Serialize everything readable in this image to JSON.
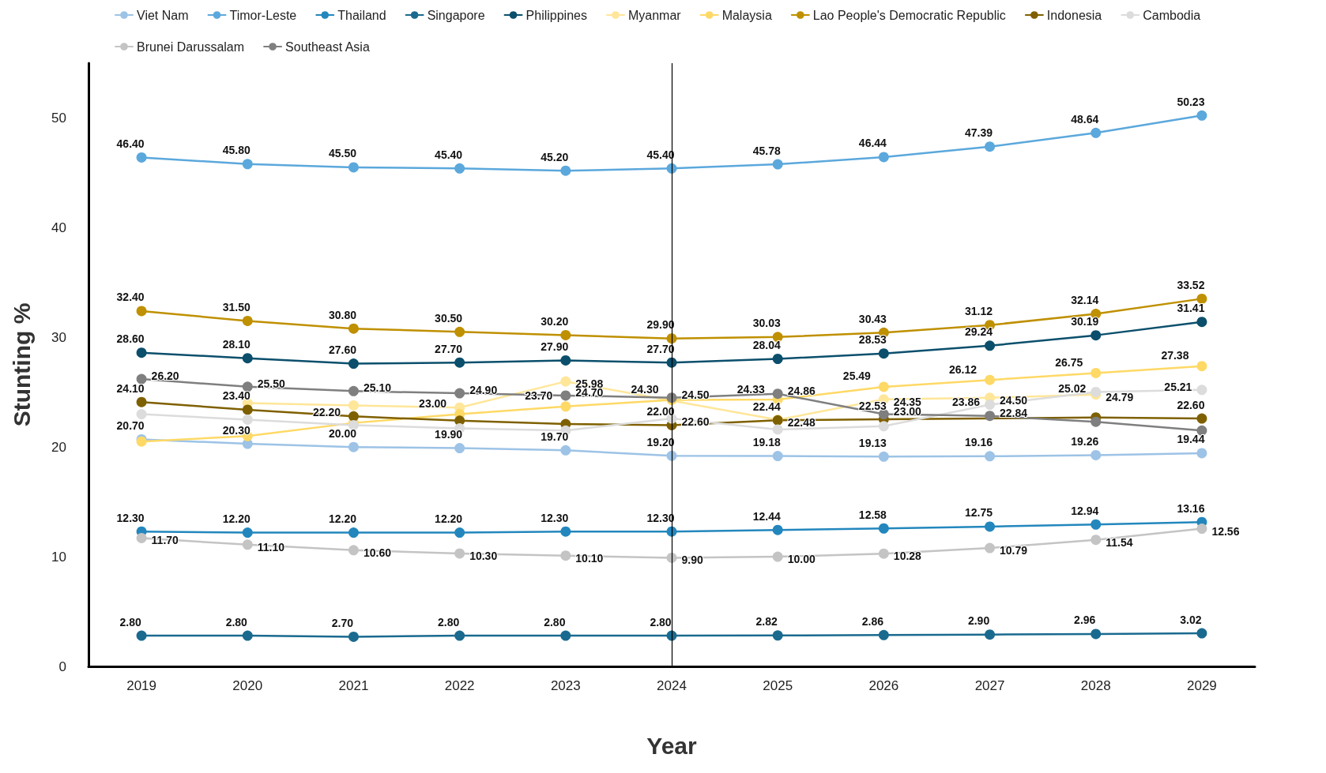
{
  "chart_data": {
    "type": "line",
    "xlabel": "Year",
    "ylabel": "Stunting %",
    "categories": [
      "2019",
      "2020",
      "2021",
      "2022",
      "2023",
      "2024",
      "2025",
      "2026",
      "2027",
      "2028",
      "2029"
    ],
    "ylim": [
      0,
      55
    ],
    "yticks": [
      0,
      10,
      20,
      30,
      40,
      50
    ],
    "grid": false,
    "legend": "top",
    "marker": "circle",
    "line_style": "solid",
    "ref_lines": [
      {
        "axis": "x",
        "value": "2024",
        "color": "#000000"
      }
    ],
    "series": [
      {
        "name": "Viet Nam",
        "color": "#9dc3e6",
        "values": [
          20.7,
          20.3,
          20.0,
          19.9,
          19.7,
          19.2,
          19.18,
          19.13,
          19.16,
          19.26,
          19.44
        ],
        "value_labels": [
          "20.70",
          "20.30",
          "20.00",
          "19.90",
          "19.70",
          "19.20",
          "19.18",
          "19.13",
          "19.16",
          "19.26",
          "19.44"
        ]
      },
      {
        "name": "Timor-Leste",
        "color": "#5ba8dc",
        "values": [
          46.4,
          45.8,
          45.5,
          45.4,
          45.2,
          45.4,
          45.78,
          46.44,
          47.39,
          48.64,
          50.23
        ],
        "value_labels": [
          "46.40",
          "45.80",
          "45.50",
          "45.40",
          "45.20",
          "45.40",
          "45.78",
          "46.44",
          "47.39",
          "48.64",
          "50.23"
        ]
      },
      {
        "name": "Thailand",
        "color": "#2387bd",
        "values": [
          12.3,
          12.2,
          12.2,
          12.2,
          12.3,
          12.3,
          12.44,
          12.58,
          12.75,
          12.94,
          13.16
        ],
        "value_labels": [
          "12.30",
          "12.20",
          "12.20",
          "12.20",
          "12.30",
          "12.30",
          "12.44",
          "12.58",
          "12.75",
          "12.94",
          "13.16"
        ]
      },
      {
        "name": "Singapore",
        "color": "#1a6a8f",
        "values": [
          2.8,
          2.8,
          2.7,
          2.8,
          2.8,
          2.8,
          2.82,
          2.86,
          2.9,
          2.96,
          3.02
        ],
        "value_labels": [
          "2.80",
          "2.80",
          "2.70",
          "2.80",
          "2.80",
          "2.80",
          "2.82",
          "2.86",
          "2.90",
          "2.96",
          "3.02"
        ]
      },
      {
        "name": "Philippines",
        "color": "#0b4f6c",
        "values": [
          28.6,
          28.1,
          27.6,
          27.7,
          27.9,
          27.7,
          28.04,
          28.53,
          29.24,
          30.19,
          31.41
        ],
        "value_labels": [
          "28.60",
          "28.10",
          "27.60",
          "27.70",
          "27.90",
          "27.70",
          "28.04",
          "28.53",
          "29.24",
          "30.19",
          "31.41"
        ]
      },
      {
        "name": "Myanmar",
        "color": "#ffe699",
        "values": [
          null,
          24.0,
          23.8,
          23.6,
          25.98,
          null,
          22.48,
          24.35,
          24.5,
          24.79,
          null
        ],
        "value_labels": [
          null,
          null,
          null,
          null,
          "25.98",
          null,
          "22.48",
          "24.35",
          "24.50",
          "24.79",
          null
        ]
      },
      {
        "name": "Malaysia",
        "color": "#ffd966",
        "values": [
          20.5,
          21.0,
          22.2,
          23.0,
          23.7,
          24.3,
          24.33,
          25.49,
          26.12,
          26.75,
          27.38
        ],
        "value_labels": [
          null,
          null,
          "22.20",
          "23.00",
          "23.70",
          "24.30",
          "24.33",
          "25.49",
          "26.12",
          "26.75",
          "27.38"
        ]
      },
      {
        "name": "Lao People's Democratic Republic",
        "color": "#bf9000",
        "values": [
          32.4,
          31.5,
          30.8,
          30.5,
          30.2,
          29.9,
          30.03,
          30.43,
          31.12,
          32.14,
          33.52
        ],
        "value_labels": [
          "32.40",
          "31.50",
          "30.80",
          "30.50",
          "30.20",
          "29.90",
          "30.03",
          "30.43",
          "31.12",
          "32.14",
          "33.52"
        ]
      },
      {
        "name": "Indonesia",
        "color": "#7f6000",
        "values": [
          24.1,
          23.4,
          22.8,
          22.4,
          22.1,
          22.0,
          22.44,
          22.53,
          null,
          22.7,
          22.6
        ],
        "value_labels": [
          "24.10",
          "23.40",
          null,
          null,
          null,
          "22.00",
          "22.44",
          "22.53",
          null,
          null,
          "22.60"
        ]
      },
      {
        "name": "Cambodia",
        "color": "#dcdcdc",
        "values": [
          23.0,
          22.5,
          22.0,
          21.7,
          21.5,
          22.6,
          21.6,
          21.9,
          23.86,
          25.02,
          25.21
        ],
        "value_labels": [
          null,
          null,
          null,
          null,
          null,
          "22.60",
          null,
          null,
          "23.86",
          "25.02",
          "25.21"
        ]
      },
      {
        "name": "Brunei Darussalam",
        "color": "#c4c4c4",
        "values": [
          11.7,
          11.1,
          10.6,
          10.3,
          10.1,
          9.9,
          10.0,
          10.28,
          10.79,
          11.54,
          12.56
        ],
        "value_labels": [
          "11.70",
          "11.10",
          "10.60",
          "10.30",
          "10.10",
          "9.90",
          "10.00",
          "10.28",
          "10.79",
          "11.54",
          "12.56"
        ]
      },
      {
        "name": "Southeast Asia",
        "color": "#7f7f7f",
        "values": [
          26.2,
          25.5,
          25.1,
          24.9,
          24.7,
          24.5,
          24.86,
          23.0,
          22.84,
          22.3,
          21.5
        ],
        "value_labels": [
          "26.20",
          "25.50",
          "25.10",
          "24.90",
          "24.70",
          "24.50",
          "24.86",
          "23.00",
          "22.84",
          null,
          null
        ]
      }
    ]
  }
}
